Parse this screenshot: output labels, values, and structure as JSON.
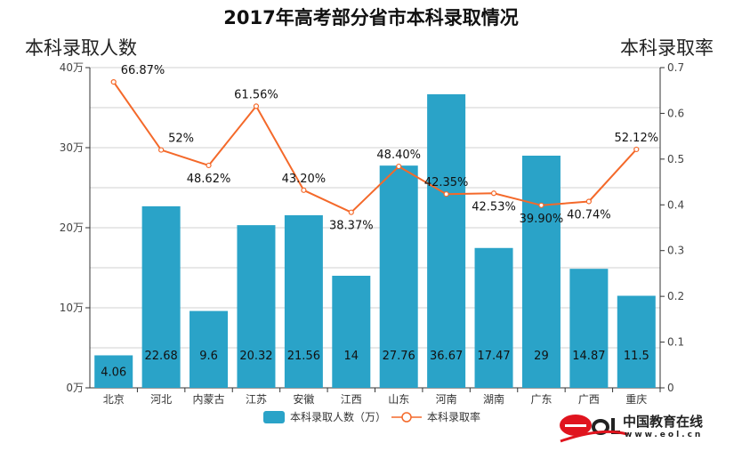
{
  "chart_data": {
    "type": "bar+line",
    "title": "2017年高考部分省市本科录取情况",
    "ylabel_left": "本科录取人数",
    "ylabel_right": "本科录取率",
    "categories": [
      "北京",
      "河北",
      "内蒙古",
      "江苏",
      "安徽",
      "江西",
      "山东",
      "河南",
      "湖南",
      "广东",
      "广西",
      "重庆"
    ],
    "left_axis": {
      "ylim": [
        0,
        40
      ],
      "ticks": [
        "0万",
        "10万",
        "20万",
        "30万",
        "40万"
      ],
      "tick_values": [
        0,
        10,
        20,
        30,
        40
      ]
    },
    "right_axis": {
      "ylim": [
        0,
        0.7
      ],
      "ticks": [
        "0",
        "0.1",
        "0.2",
        "0.3",
        "0.4",
        "0.5",
        "0.6",
        "0.7"
      ]
    },
    "grid": true,
    "series": [
      {
        "name": "本科录取人数（万）",
        "type": "bar",
        "color": "#2aa3c8",
        "values": [
          4.06,
          22.68,
          9.6,
          20.32,
          21.56,
          14,
          27.76,
          36.67,
          17.47,
          29,
          14.87,
          11.5
        ],
        "labels": [
          "4.06",
          "22.68",
          "9.6",
          "20.32",
          "21.56",
          "14",
          "27.76",
          "36.67",
          "17.47",
          "29",
          "14.87",
          "11.5"
        ]
      },
      {
        "name": "本科录取率",
        "type": "line",
        "color": "#f4692a",
        "values": [
          0.6687,
          0.52,
          0.4862,
          0.6156,
          0.432,
          0.3837,
          0.484,
          0.4235,
          0.4253,
          0.399,
          0.4074,
          0.5212
        ],
        "labels": [
          "66.87%",
          "52%",
          "48.62%",
          "61.56%",
          "43.20%",
          "38.37%",
          "48.40%",
          "42.35%",
          "42.53%",
          "39.90%",
          "40.74%",
          "52.12%"
        ]
      }
    ],
    "legend": "bottom"
  },
  "logo": {
    "text": "eol",
    "name": "中国教育在线",
    "url": "www.eol.cn"
  }
}
